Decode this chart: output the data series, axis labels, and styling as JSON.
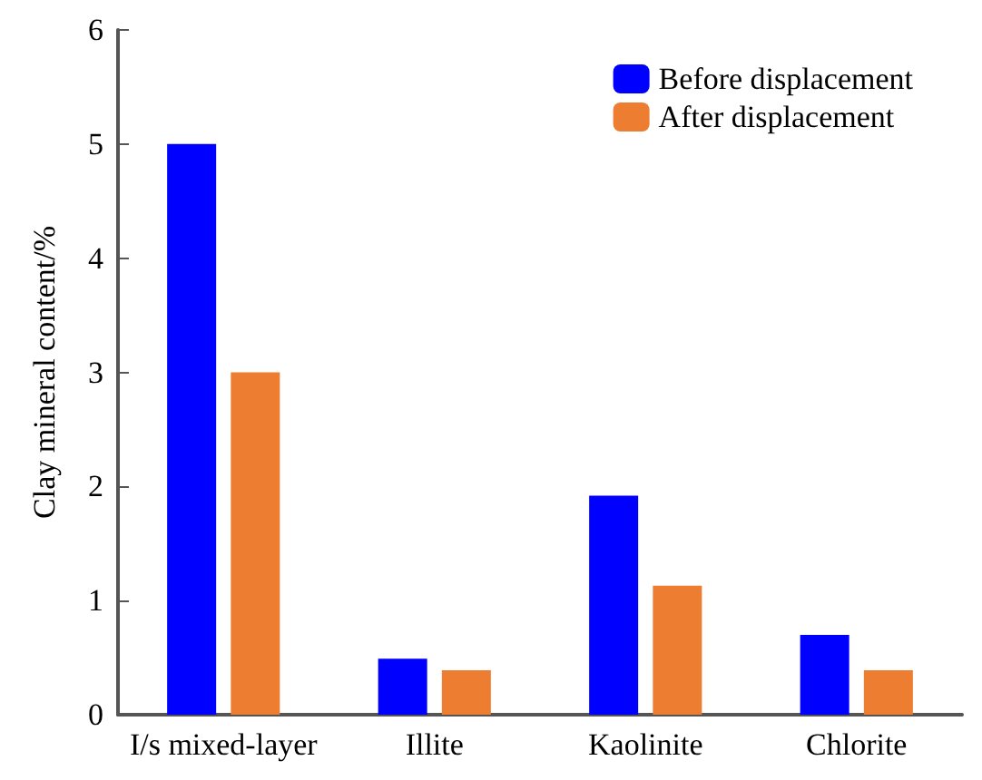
{
  "chart_data": {
    "type": "bar",
    "ylabel": "Clay mineral content/%",
    "categories": [
      "I/s mixed-layer",
      "Illite",
      "Kaolinite",
      "Chlorite"
    ],
    "series": [
      {
        "name": "Before displacement",
        "color": "#0000ff",
        "values": [
          5,
          0.49,
          1.92,
          0.7
        ]
      },
      {
        "name": "After displacement",
        "color": "#ed7d31",
        "values": [
          3,
          0.39,
          1.13,
          0.39
        ]
      }
    ],
    "ylim": [
      0,
      6
    ],
    "yticks": [
      0,
      1,
      2,
      3,
      4,
      5,
      6
    ],
    "grid": false,
    "legend": "top right"
  }
}
